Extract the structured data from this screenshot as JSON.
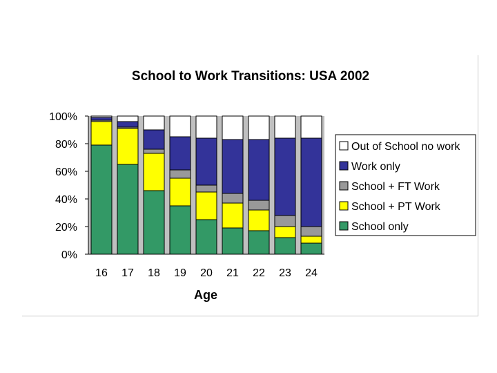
{
  "chart_data": {
    "type": "bar",
    "stacked": true,
    "title": "School to Work Transitions: USA 2002",
    "xlabel": "Age",
    "ylabel": "",
    "ylim": [
      0,
      100
    ],
    "yticks": [
      "0%",
      "20%",
      "40%",
      "60%",
      "80%",
      "100%"
    ],
    "categories": [
      "16",
      "17",
      "18",
      "19",
      "20",
      "21",
      "22",
      "23",
      "24"
    ],
    "legend_position": "right",
    "series": [
      {
        "name": "School only",
        "color": "#339966",
        "values": [
          79,
          65,
          46,
          35,
          25,
          19,
          17,
          12,
          8
        ]
      },
      {
        "name": "School + PT Work",
        "color": "#ffff00",
        "values": [
          17,
          26,
          27,
          20,
          20,
          18,
          15,
          8,
          5
        ]
      },
      {
        "name": "School + FT Work",
        "color": "#999999",
        "values": [
          1,
          1,
          3,
          6,
          5,
          7,
          7,
          8,
          7
        ]
      },
      {
        "name": "Work only",
        "color": "#333399",
        "values": [
          2,
          4,
          14,
          24,
          34,
          39,
          44,
          56,
          64
        ]
      },
      {
        "name": "Out of School no work",
        "color": "#ffffff",
        "values": [
          1,
          4,
          10,
          15,
          16,
          17,
          17,
          16,
          16
        ]
      }
    ],
    "legend_order": [
      "Out of School no work",
      "Work only",
      "School + FT Work",
      "School + PT Work",
      "School only"
    ]
  }
}
